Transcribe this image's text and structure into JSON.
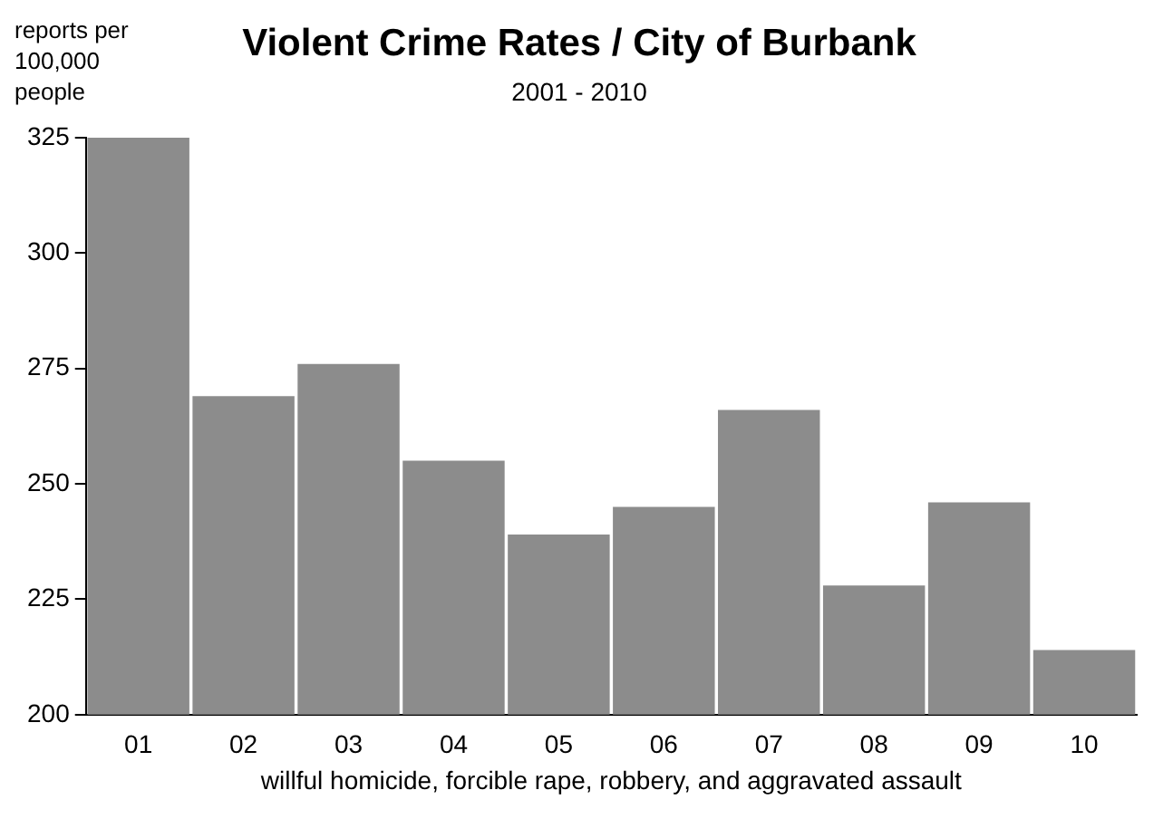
{
  "chart_data": {
    "type": "bar",
    "title": "Violent Crime Rates / City of Burbank",
    "subtitle": "2001 - 2010",
    "ylabel": "reports per 100,000 people",
    "xlabel": "willful homicide, forcible rape, robbery, and aggravated assault",
    "categories": [
      "01",
      "02",
      "03",
      "04",
      "05",
      "06",
      "07",
      "08",
      "09",
      "10"
    ],
    "values": [
      325,
      269,
      276,
      255,
      239,
      245,
      266,
      228,
      246,
      214
    ],
    "color": "#8c8c8c",
    "ylim": [
      200,
      325
    ],
    "yticks": [
      200,
      225,
      250,
      275,
      300,
      325
    ],
    "grid": false,
    "legend": false
  }
}
